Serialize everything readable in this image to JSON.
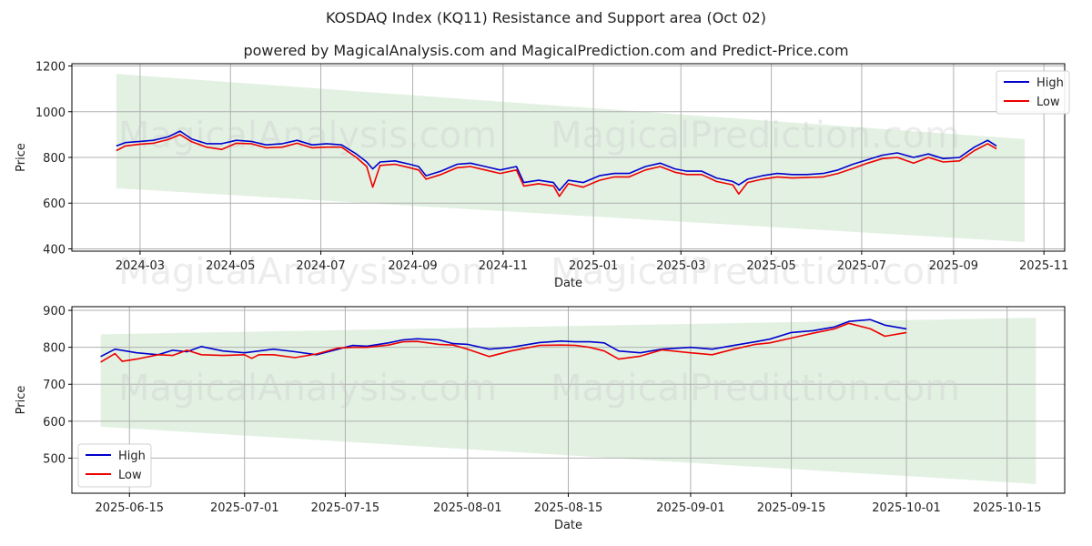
{
  "title": "KOSDAQ Index (KQ11) Resistance and Support area (Oct 02)",
  "subtitle": "powered by MagicalAnalysis.com and MagicalPrediction.com and Predict-Price.com",
  "watermarks": [
    "MagicalAnalysis.com",
    "MagicalPrediction.com"
  ],
  "colors": {
    "high": "#0000cc",
    "low": "#ee0000",
    "band": "#d9ecd9",
    "grid": "#b0b0b0"
  },
  "chart_data": [
    {
      "type": "line",
      "xlabel": "Date",
      "ylabel": "Price",
      "ylim": [
        390,
        1210
      ],
      "xlim": [
        "2024-01-15",
        "2025-11-15"
      ],
      "x_ticks": [
        "2024-03",
        "2024-05",
        "2024-07",
        "2024-09",
        "2024-11",
        "2025-01",
        "2025-03",
        "2025-05",
        "2025-07",
        "2025-09",
        "2025-11"
      ],
      "y_ticks": [
        400,
        600,
        800,
        1000,
        1200
      ],
      "grid": true,
      "legend": "upper right",
      "band": {
        "start": "2024-02-14",
        "end": "2025-10-19",
        "upper": [
          1165,
          880
        ],
        "lower": [
          665,
          430
        ]
      },
      "series": [
        {
          "name": "High",
          "x": [
            "2024-02-14",
            "2024-02-20",
            "2024-03-01",
            "2024-03-10",
            "2024-03-20",
            "2024-03-28",
            "2024-04-05",
            "2024-04-15",
            "2024-04-25",
            "2024-05-05",
            "2024-05-15",
            "2024-05-25",
            "2024-06-05",
            "2024-06-15",
            "2024-06-25",
            "2024-07-05",
            "2024-07-15",
            "2024-07-25",
            "2024-08-01",
            "2024-08-05",
            "2024-08-10",
            "2024-08-20",
            "2024-08-30",
            "2024-09-05",
            "2024-09-10",
            "2024-09-20",
            "2024-10-01",
            "2024-10-10",
            "2024-10-20",
            "2024-10-30",
            "2024-11-10",
            "2024-11-15",
            "2024-11-25",
            "2024-12-05",
            "2024-12-09",
            "2024-12-15",
            "2024-12-25",
            "2025-01-05",
            "2025-01-15",
            "2025-01-25",
            "2025-02-05",
            "2025-02-15",
            "2025-02-25",
            "2025-03-05",
            "2025-03-15",
            "2025-03-25",
            "2025-04-05",
            "2025-04-09",
            "2025-04-15",
            "2025-04-25",
            "2025-05-05",
            "2025-05-15",
            "2025-05-25",
            "2025-06-05",
            "2025-06-15",
            "2025-06-25",
            "2025-07-05",
            "2025-07-15",
            "2025-07-25",
            "2025-08-05",
            "2025-08-15",
            "2025-08-25",
            "2025-09-05",
            "2025-09-15",
            "2025-09-24",
            "2025-09-30"
          ],
          "values": [
            850,
            865,
            870,
            875,
            890,
            915,
            880,
            860,
            860,
            875,
            870,
            855,
            860,
            875,
            855,
            860,
            855,
            815,
            780,
            750,
            780,
            785,
            770,
            760,
            720,
            740,
            770,
            775,
            760,
            745,
            760,
            690,
            700,
            690,
            655,
            700,
            690,
            720,
            730,
            730,
            760,
            775,
            750,
            740,
            740,
            710,
            695,
            680,
            705,
            720,
            730,
            725,
            725,
            730,
            745,
            770,
            790,
            810,
            820,
            800,
            815,
            795,
            800,
            845,
            875,
            850
          ]
        },
        {
          "name": "Low",
          "x": [
            "2024-02-14",
            "2024-02-20",
            "2024-03-01",
            "2024-03-10",
            "2024-03-20",
            "2024-03-28",
            "2024-04-05",
            "2024-04-15",
            "2024-04-25",
            "2024-05-05",
            "2024-05-15",
            "2024-05-25",
            "2024-06-05",
            "2024-06-15",
            "2024-06-25",
            "2024-07-05",
            "2024-07-15",
            "2024-07-25",
            "2024-08-01",
            "2024-08-05",
            "2024-08-10",
            "2024-08-20",
            "2024-08-30",
            "2024-09-05",
            "2024-09-10",
            "2024-09-20",
            "2024-10-01",
            "2024-10-10",
            "2024-10-20",
            "2024-10-30",
            "2024-11-10",
            "2024-11-15",
            "2024-11-25",
            "2024-12-05",
            "2024-12-09",
            "2024-12-15",
            "2024-12-25",
            "2025-01-05",
            "2025-01-15",
            "2025-01-25",
            "2025-02-05",
            "2025-02-15",
            "2025-02-25",
            "2025-03-05",
            "2025-03-15",
            "2025-03-25",
            "2025-04-05",
            "2025-04-09",
            "2025-04-15",
            "2025-04-25",
            "2025-05-05",
            "2025-05-15",
            "2025-05-25",
            "2025-06-05",
            "2025-06-15",
            "2025-06-25",
            "2025-07-05",
            "2025-07-15",
            "2025-07-25",
            "2025-08-05",
            "2025-08-15",
            "2025-08-25",
            "2025-09-05",
            "2025-09-15",
            "2025-09-24",
            "2025-09-30"
          ],
          "values": [
            830,
            850,
            858,
            862,
            878,
            900,
            868,
            845,
            835,
            862,
            860,
            842,
            845,
            862,
            842,
            845,
            845,
            800,
            760,
            670,
            765,
            770,
            755,
            745,
            705,
            725,
            755,
            760,
            745,
            730,
            745,
            675,
            685,
            675,
            630,
            685,
            670,
            700,
            715,
            715,
            745,
            760,
            735,
            725,
            725,
            695,
            680,
            640,
            690,
            705,
            715,
            710,
            712,
            715,
            730,
            752,
            775,
            795,
            800,
            775,
            800,
            780,
            785,
            830,
            860,
            838
          ]
        }
      ]
    },
    {
      "type": "line",
      "xlabel": "Date",
      "ylabel": "Price",
      "ylim": [
        405,
        910
      ],
      "xlim": [
        "2025-06-07",
        "2025-10-23"
      ],
      "x_ticks": [
        "2025-06-15",
        "2025-07-01",
        "2025-07-15",
        "2025-08-01",
        "2025-08-15",
        "2025-09-01",
        "2025-09-15",
        "2025-10-01",
        "2025-10-15"
      ],
      "y_ticks": [
        500,
        600,
        700,
        800,
        900
      ],
      "grid": true,
      "legend": "lower left",
      "band": {
        "start": "2025-06-11",
        "end": "2025-10-19",
        "upper": [
          835,
          880
        ],
        "lower": [
          585,
          430
        ]
      },
      "series": [
        {
          "name": "High",
          "x": [
            "2025-06-11",
            "2025-06-13",
            "2025-06-16",
            "2025-06-19",
            "2025-06-21",
            "2025-06-23",
            "2025-06-25",
            "2025-06-28",
            "2025-07-01",
            "2025-07-03",
            "2025-07-05",
            "2025-07-08",
            "2025-07-11",
            "2025-07-14",
            "2025-07-16",
            "2025-07-18",
            "2025-07-21",
            "2025-07-23",
            "2025-07-25",
            "2025-07-28",
            "2025-07-30",
            "2025-08-01",
            "2025-08-04",
            "2025-08-07",
            "2025-08-11",
            "2025-08-14",
            "2025-08-16",
            "2025-08-18",
            "2025-08-20",
            "2025-08-22",
            "2025-08-25",
            "2025-08-28",
            "2025-09-01",
            "2025-09-04",
            "2025-09-07",
            "2025-09-10",
            "2025-09-12",
            "2025-09-15",
            "2025-09-18",
            "2025-09-21",
            "2025-09-23",
            "2025-09-26",
            "2025-09-28",
            "2025-10-01"
          ],
          "values": [
            775,
            795,
            785,
            780,
            792,
            788,
            802,
            790,
            785,
            790,
            795,
            788,
            780,
            795,
            805,
            803,
            812,
            820,
            823,
            820,
            810,
            808,
            795,
            800,
            813,
            817,
            815,
            815,
            812,
            790,
            785,
            795,
            800,
            795,
            805,
            815,
            822,
            840,
            845,
            855,
            870,
            875,
            860,
            850
          ]
        },
        {
          "name": "Low",
          "x": [
            "2025-06-11",
            "2025-06-13",
            "2025-06-14",
            "2025-06-16",
            "2025-06-19",
            "2025-06-21",
            "2025-06-23",
            "2025-06-25",
            "2025-06-28",
            "2025-07-01",
            "2025-07-02",
            "2025-07-03",
            "2025-07-05",
            "2025-07-08",
            "2025-07-11",
            "2025-07-14",
            "2025-07-16",
            "2025-07-18",
            "2025-07-21",
            "2025-07-23",
            "2025-07-25",
            "2025-07-28",
            "2025-07-30",
            "2025-08-01",
            "2025-08-04",
            "2025-08-07",
            "2025-08-11",
            "2025-08-14",
            "2025-08-16",
            "2025-08-18",
            "2025-08-20",
            "2025-08-22",
            "2025-08-25",
            "2025-08-28",
            "2025-09-01",
            "2025-09-04",
            "2025-09-07",
            "2025-09-10",
            "2025-09-12",
            "2025-09-15",
            "2025-09-18",
            "2025-09-21",
            "2025-09-23",
            "2025-09-26",
            "2025-09-28",
            "2025-10-01"
          ],
          "values": [
            760,
            783,
            762,
            768,
            780,
            778,
            792,
            780,
            778,
            780,
            770,
            780,
            780,
            772,
            782,
            798,
            800,
            800,
            806,
            815,
            816,
            808,
            806,
            795,
            775,
            790,
            805,
            806,
            805,
            800,
            790,
            768,
            776,
            793,
            785,
            780,
            795,
            808,
            812,
            825,
            838,
            850,
            865,
            850,
            830,
            840
          ]
        }
      ]
    }
  ]
}
